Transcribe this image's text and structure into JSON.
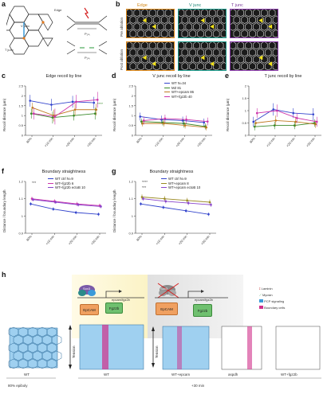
{
  "panels": {
    "a": {
      "label": "a",
      "edge_label": "Edge",
      "vjunc_label": "V junc",
      "tjunc_label": "T junc",
      "p_int_top": "P₁ₙₜ",
      "p_int_bot": "P₁ₙₜ"
    },
    "b": {
      "label": "b",
      "col_edge": "Edge",
      "col_v": "V junc",
      "col_t": "T junc",
      "row_pre": "Pre ablation",
      "row_post": "Post ablation"
    },
    "c": {
      "label": "c",
      "title": "Edge recoil by line",
      "ylabel": "Recoil distance (µm)",
      "sig": "****"
    },
    "d": {
      "label": "d",
      "title": "V junc recoil by line",
      "ylabel": "Recoil distance (µm)"
    },
    "e": {
      "label": "e",
      "title": "T junc recoil by line",
      "ylabel": "Recoil distance (µm)"
    },
    "f": {
      "label": "f",
      "title": "Boundary straightness",
      "ylabel": "Distance / boundary length",
      "sig": "***"
    },
    "g": {
      "label": "g",
      "title": "Boundary straightness",
      "ylabel": "Distance / boundary length",
      "sig1": "****",
      "sig2": "***"
    },
    "h": {
      "label": "h",
      "gene_left": "Sox3",
      "gene_right": "Sox3",
      "target_left": "epcam/fgz2b",
      "target_right": "epcam/fgz2b",
      "box_epcam_left": "EpCAM",
      "box_fgz_left": "Fgz2b",
      "box_epcam_right": "EpCAM",
      "box_fgz_right": "Fgz2b",
      "tension_left": "Tension",
      "tension_right": "Tension",
      "legend_items": [
        "Laminin",
        "Myosin",
        "PCP signaling",
        "Boundary cells"
      ],
      "caption_wt1": "WT",
      "caption_wt2": "WT",
      "caption_mut1": "WT+epcam",
      "caption_mut2": "aspdh",
      "caption_mut3": "WT+fgz2b",
      "epiboly": "80% epiboly",
      "time": "+30 min"
    }
  },
  "chart_data": [
    {
      "type": "line",
      "title": "Edge recoil by line",
      "ylabel": "Recoil distance (µm)",
      "categories": [
        "80%",
        "+10 min",
        "+20 min",
        "+30 min"
      ],
      "ylim": [
        0,
        2.5
      ],
      "yticks": [
        0,
        0.5,
        1.0,
        1.5,
        2.0,
        2.5
      ],
      "series": [
        {
          "name": "WT",
          "color": "#3344cc",
          "values": [
            1.75,
            1.55,
            1.7,
            1.65
          ],
          "err": [
            0.3,
            0.3,
            0.3,
            0.3
          ]
        },
        {
          "name": "MZ",
          "color": "#3a8a2a",
          "values": [
            1.1,
            0.9,
            1.0,
            1.1
          ],
          "err": [
            0.25,
            0.3,
            0.25,
            0.3
          ]
        },
        {
          "name": "WT+epcam",
          "color": "#c07a22",
          "values": [
            1.4,
            1.0,
            1.3,
            1.3
          ],
          "err": [
            0.25,
            0.3,
            0.3,
            0.3
          ]
        },
        {
          "name": "WT+fgz2b",
          "color": "#cc33aa",
          "values": [
            1.1,
            0.95,
            1.7,
            1.8
          ],
          "err": [
            0.3,
            0.4,
            0.35,
            0.4
          ]
        }
      ]
    },
    {
      "type": "line",
      "title": "V junc recoil by line",
      "ylabel": "Recoil distance (µm)",
      "categories": [
        "80%",
        "+10 min",
        "+20 min",
        "+30 min"
      ],
      "ylim": [
        0,
        2.5
      ],
      "yticks": [
        0,
        0.5,
        1.0,
        1.5,
        2.0,
        2.5
      ],
      "legend": [
        {
          "name": "WT",
          "n": "N=34",
          "color": "#3344cc"
        },
        {
          "name": "MZ",
          "n": "81",
          "color": "#3a8a2a"
        },
        {
          "name": "WT+epcam",
          "n": "86",
          "color": "#c07a22"
        },
        {
          "name": "WT+fgz2b",
          "n": "40",
          "color": "#cc33aa"
        }
      ],
      "series": [
        {
          "name": "WT",
          "color": "#3344cc",
          "values": [
            0.95,
            0.8,
            0.75,
            0.65
          ],
          "err": [
            0.2,
            0.2,
            0.2,
            0.2
          ]
        },
        {
          "name": "MZ",
          "color": "#3a8a2a",
          "values": [
            0.7,
            0.65,
            0.6,
            0.45
          ],
          "err": [
            0.15,
            0.15,
            0.2,
            0.15
          ]
        },
        {
          "name": "WT+epcam",
          "color": "#c07a22",
          "values": [
            0.6,
            0.6,
            0.5,
            0.4
          ],
          "err": [
            0.15,
            0.15,
            0.15,
            0.15
          ]
        },
        {
          "name": "WT+fgz2b",
          "color": "#cc33aa",
          "values": [
            0.75,
            0.85,
            0.8,
            0.7
          ],
          "err": [
            0.2,
            0.2,
            0.2,
            0.2
          ]
        }
      ]
    },
    {
      "type": "line",
      "title": "T junc recoil by line",
      "ylabel": "Recoil distance (µm)",
      "categories": [
        "80%",
        "+10 min",
        "+20 min",
        "+30 min"
      ],
      "ylim": [
        0,
        2.0
      ],
      "yticks": [
        0,
        0.5,
        1.0,
        1.5,
        2.0
      ],
      "series": [
        {
          "name": "WT",
          "color": "#3344cc",
          "values": [
            0.55,
            1.05,
            0.9,
            0.85
          ],
          "err": [
            0.2,
            0.25,
            0.2,
            0.25
          ]
        },
        {
          "name": "MZ",
          "color": "#3a8a2a",
          "values": [
            0.35,
            0.4,
            0.4,
            0.5
          ],
          "err": [
            0.15,
            0.15,
            0.15,
            0.15
          ]
        },
        {
          "name": "WT+epcam",
          "color": "#c07a22",
          "values": [
            0.5,
            0.6,
            0.55,
            0.45
          ],
          "err": [
            0.15,
            0.2,
            0.2,
            0.15
          ]
        },
        {
          "name": "WT+fgz2b",
          "color": "#cc33aa",
          "values": [
            0.9,
            1.0,
            0.7,
            0.55
          ],
          "err": [
            0.2,
            0.25,
            0.2,
            0.2
          ]
        }
      ]
    },
    {
      "type": "line",
      "title": "Boundary straightness",
      "ylabel": "Distance / boundary length",
      "categories": [
        "80%",
        "+10 min",
        "+20 min",
        "+30 min"
      ],
      "ylim": [
        0.9,
        1.2
      ],
      "yticks": [
        0.9,
        1.0,
        1.1,
        1.2
      ],
      "legend": [
        {
          "name": "WT ctrl",
          "n": "N=9",
          "color": "#3344cc"
        },
        {
          "name": "WT+fgz2b",
          "n": "6",
          "color": "#cc33aa"
        },
        {
          "name": "WT+fgz2b ectoB",
          "n": "10",
          "color": "#8844cc"
        }
      ],
      "series": [
        {
          "name": "WT ctrl",
          "color": "#3344cc",
          "values": [
            1.07,
            1.04,
            1.02,
            1.01
          ],
          "err": [
            0.01,
            0.01,
            0.01,
            0.01
          ]
        },
        {
          "name": "WT+fgz2b",
          "color": "#cc33aa",
          "values": [
            1.1,
            1.085,
            1.07,
            1.06
          ],
          "err": [
            0.012,
            0.012,
            0.012,
            0.012
          ]
        },
        {
          "name": "WT+fgz2b ectoB",
          "color": "#8844cc",
          "values": [
            1.095,
            1.08,
            1.065,
            1.055
          ],
          "err": [
            0.01,
            0.01,
            0.01,
            0.01
          ]
        }
      ]
    },
    {
      "type": "line",
      "title": "Boundary straightness",
      "ylabel": "Distance / boundary length",
      "categories": [
        "80%",
        "+10 min",
        "+20 min",
        "+30 min"
      ],
      "ylim": [
        0.9,
        1.2
      ],
      "yticks": [
        0.9,
        1.0,
        1.1,
        1.2
      ],
      "legend": [
        {
          "name": "WT ctrl",
          "n": "N=9",
          "color": "#3344cc"
        },
        {
          "name": "WT+epcam",
          "n": "8",
          "color": "#9a8a22"
        },
        {
          "name": "WT+epcam ectoB",
          "n": "10",
          "color": "#8844cc"
        }
      ],
      "series": [
        {
          "name": "WT ctrl",
          "color": "#3344cc",
          "values": [
            1.07,
            1.05,
            1.03,
            1.01
          ],
          "err": [
            0.01,
            0.01,
            0.01,
            0.01
          ]
        },
        {
          "name": "WT+epcam",
          "color": "#9a8a22",
          "values": [
            1.11,
            1.1,
            1.09,
            1.08
          ],
          "err": [
            0.015,
            0.015,
            0.015,
            0.015
          ]
        },
        {
          "name": "WT+epcam ectoB",
          "color": "#8844cc",
          "values": [
            1.1,
            1.085,
            1.075,
            1.065
          ],
          "err": [
            0.012,
            0.012,
            0.012,
            0.012
          ]
        }
      ]
    }
  ]
}
